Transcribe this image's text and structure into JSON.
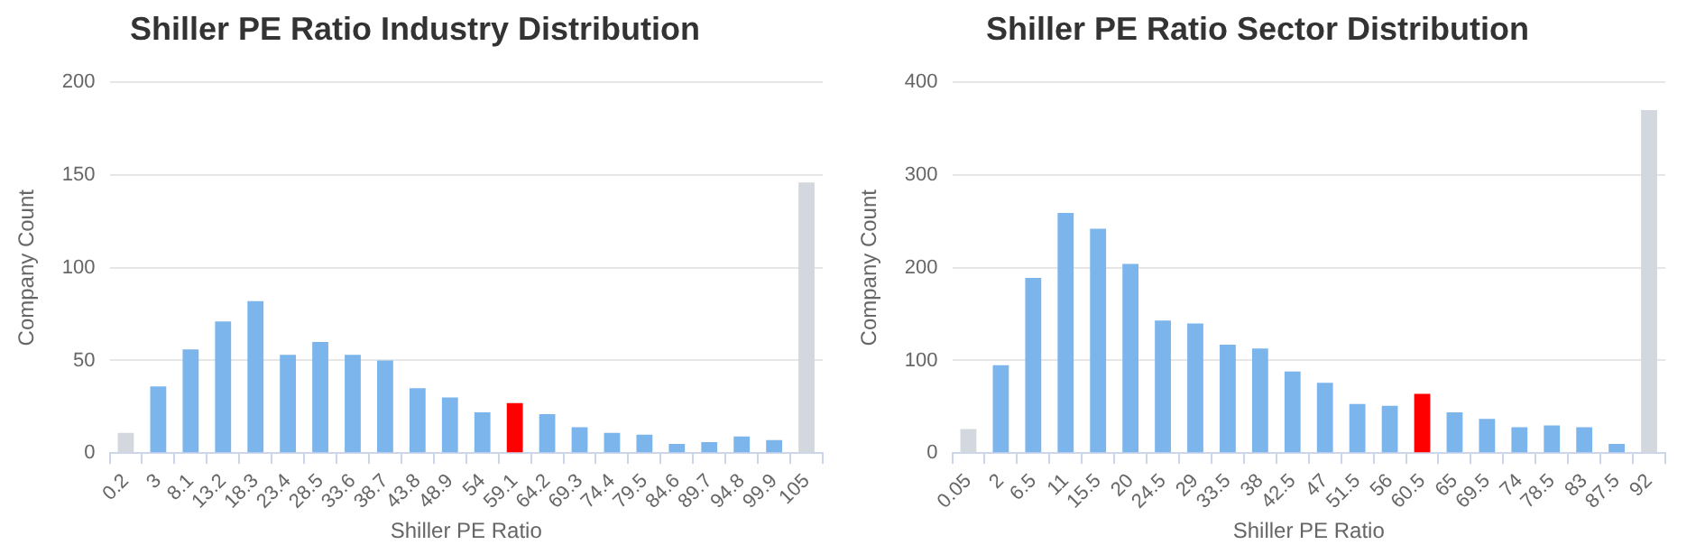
{
  "chart_data": [
    {
      "type": "bar",
      "title": "Shiller PE Ratio Industry Distribution",
      "xlabel": "Shiller PE Ratio",
      "ylabel": "Company Count",
      "categories": [
        "0.2",
        "3",
        "8.1",
        "13.2",
        "18.3",
        "23.4",
        "28.5",
        "33.6",
        "38.7",
        "43.8",
        "48.9",
        "54",
        "59.1",
        "64.2",
        "69.3",
        "74.4",
        "79.5",
        "84.6",
        "89.7",
        "94.8",
        "99.9",
        "105"
      ],
      "values": [
        11,
        36,
        56,
        71,
        82,
        53,
        60,
        53,
        50,
        35,
        30,
        22,
        27,
        21,
        14,
        11,
        10,
        5,
        6,
        9,
        7,
        146
      ],
      "colors": [
        "#d3d8de",
        "#7cb5ec",
        "#7cb5ec",
        "#7cb5ec",
        "#7cb5ec",
        "#7cb5ec",
        "#7cb5ec",
        "#7cb5ec",
        "#7cb5ec",
        "#7cb5ec",
        "#7cb5ec",
        "#7cb5ec",
        "#ff0000",
        "#7cb5ec",
        "#7cb5ec",
        "#7cb5ec",
        "#7cb5ec",
        "#7cb5ec",
        "#7cb5ec",
        "#7cb5ec",
        "#7cb5ec",
        "#d3d8de"
      ],
      "ylim": [
        0,
        200
      ],
      "yticks": [
        0,
        50,
        100,
        150,
        200
      ],
      "grid": "y",
      "legend": false
    },
    {
      "type": "bar",
      "title": "Shiller PE Ratio Sector Distribution",
      "xlabel": "Shiller PE Ratio",
      "ylabel": "Company Count",
      "categories": [
        "0.05",
        "2",
        "6.5",
        "11",
        "15.5",
        "20",
        "24.5",
        "29",
        "33.5",
        "38",
        "42.5",
        "47",
        "51.5",
        "56",
        "60.5",
        "65",
        "69.5",
        "74",
        "78.5",
        "83",
        "87.5",
        "92"
      ],
      "values": [
        26,
        95,
        189,
        259,
        242,
        204,
        143,
        140,
        117,
        113,
        88,
        76,
        53,
        51,
        64,
        44,
        37,
        28,
        30,
        28,
        10,
        370
      ],
      "colors": [
        "#d3d8de",
        "#7cb5ec",
        "#7cb5ec",
        "#7cb5ec",
        "#7cb5ec",
        "#7cb5ec",
        "#7cb5ec",
        "#7cb5ec",
        "#7cb5ec",
        "#7cb5ec",
        "#7cb5ec",
        "#7cb5ec",
        "#7cb5ec",
        "#7cb5ec",
        "#ff0000",
        "#7cb5ec",
        "#7cb5ec",
        "#7cb5ec",
        "#7cb5ec",
        "#7cb5ec",
        "#7cb5ec",
        "#d3d8de"
      ],
      "ylim": [
        0,
        400
      ],
      "yticks": [
        0,
        100,
        200,
        300,
        400
      ],
      "grid": "y",
      "legend": false
    }
  ]
}
